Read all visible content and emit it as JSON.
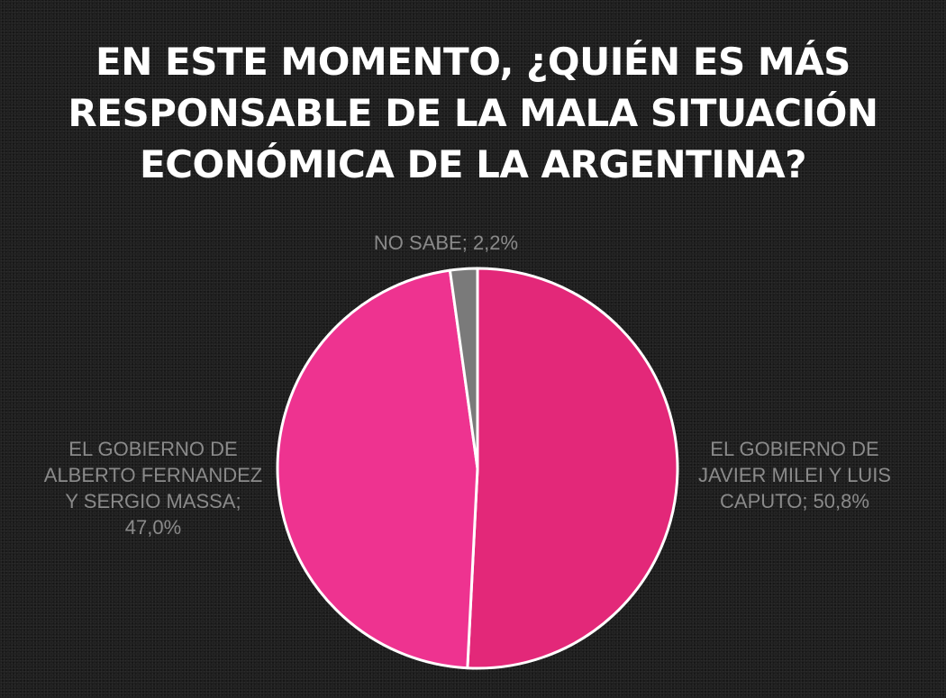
{
  "title_lines": [
    "EN ESTE MOMENTO, ¿QUIÉN ES MÁS",
    "RESPONSABLE DE LA MALA SITUACIÓN",
    "ECONÓMICA DE LA ARGENTINA?"
  ],
  "chart_data": {
    "type": "pie",
    "title": "EN ESTE MOMENTO, ¿QUIÉN ES MÁS RESPONSABLE DE LA MALA SITUACIÓN ECONÓMICA DE LA ARGENTINA?",
    "slices": [
      {
        "label": "EL GOBIERNO DE JAVIER MILEI Y LUIS CAPUTO",
        "value": 50.8,
        "display": "50,8%",
        "label_lines": [
          "EL GOBIERNO DE",
          "JAVIER MILEI Y LUIS",
          "CAPUTO; 50,8%"
        ],
        "color": "#e32879"
      },
      {
        "label": "EL GOBIERNO DE ALBERTO FERNANDEZ Y SERGIO MASSA",
        "value": 47.0,
        "display": "47,0%",
        "label_lines": [
          "EL GOBIERNO DE",
          "ALBERTO FERNANDEZ",
          "Y SERGIO MASSA;",
          "47,0%"
        ],
        "color": "#ee3390"
      },
      {
        "label": "NO SABE",
        "value": 2.2,
        "display": "2,2%",
        "label_lines": [
          "NO SABE; 2,2%"
        ],
        "color": "#7a7a7a"
      }
    ],
    "start": "12 o'clock",
    "direction": "clockwise",
    "slice_border_color": "#ffffff",
    "label_color": "#8a8a8a",
    "legend": "none"
  }
}
